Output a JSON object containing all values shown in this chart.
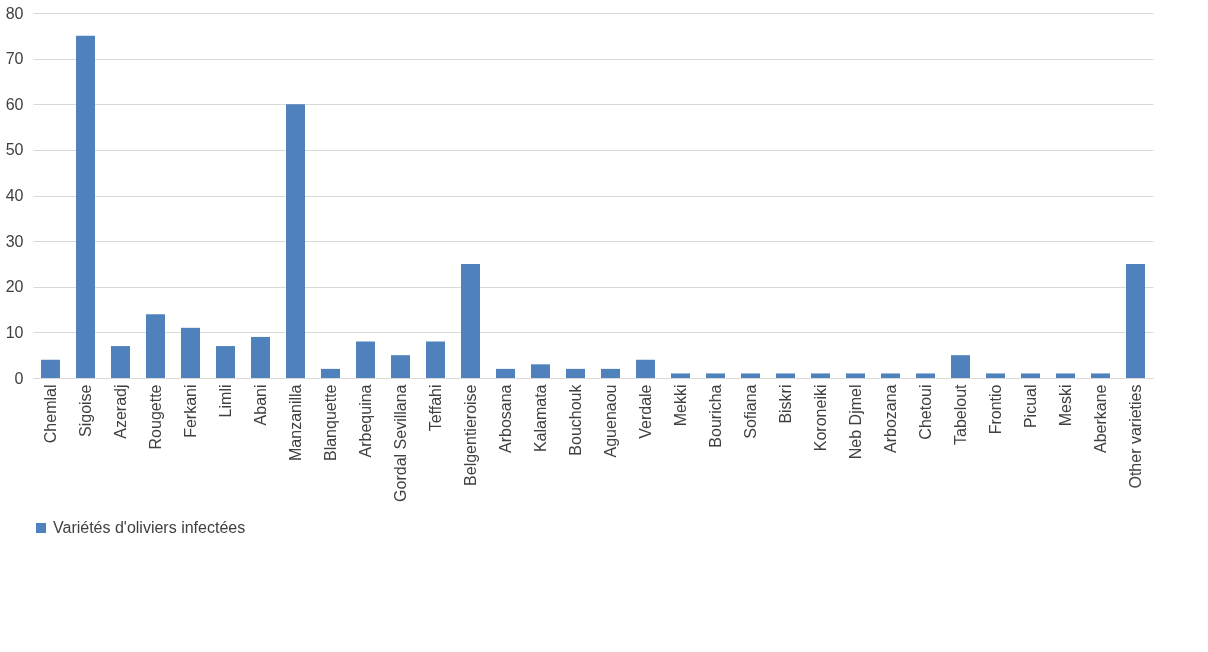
{
  "chart_data": {
    "type": "bar",
    "categories": [
      "Chemlal",
      "Sigoise",
      "Azeradj",
      "Rougette",
      "Ferkani",
      "Limli",
      "Abani",
      "Manzanilla",
      "Blanquette",
      "Arbequina",
      "Gordal Sevillana",
      "Teffahi",
      "Belgentieroise",
      "Arbosana",
      "Kalamata",
      "Bouchouk",
      "Aguenaou",
      "Verdale",
      "Mekki",
      "Bouricha",
      "Sofiana",
      "Biskri",
      "Koroneiki",
      "Neb Djmel",
      "Arbozana",
      "Chetoui",
      "Tabelout",
      "Frontio",
      "Picual",
      "Meski",
      "Aberkane",
      "Other varieties"
    ],
    "series": [
      {
        "name": "Variétés d'oliviers infectées",
        "color": "#4f81bd",
        "values": [
          4,
          75,
          7,
          14,
          11,
          7,
          9,
          60,
          2,
          8,
          5,
          8,
          25,
          2,
          3,
          2,
          2,
          4,
          1,
          1,
          1,
          1,
          1,
          1,
          1,
          1,
          5,
          1,
          1,
          1,
          1,
          25
        ]
      }
    ],
    "ylim": [
      0,
      80
    ],
    "yticks": [
      0,
      10,
      20,
      30,
      40,
      50,
      60,
      70,
      80
    ],
    "grid": "y",
    "legend": "bottom"
  }
}
